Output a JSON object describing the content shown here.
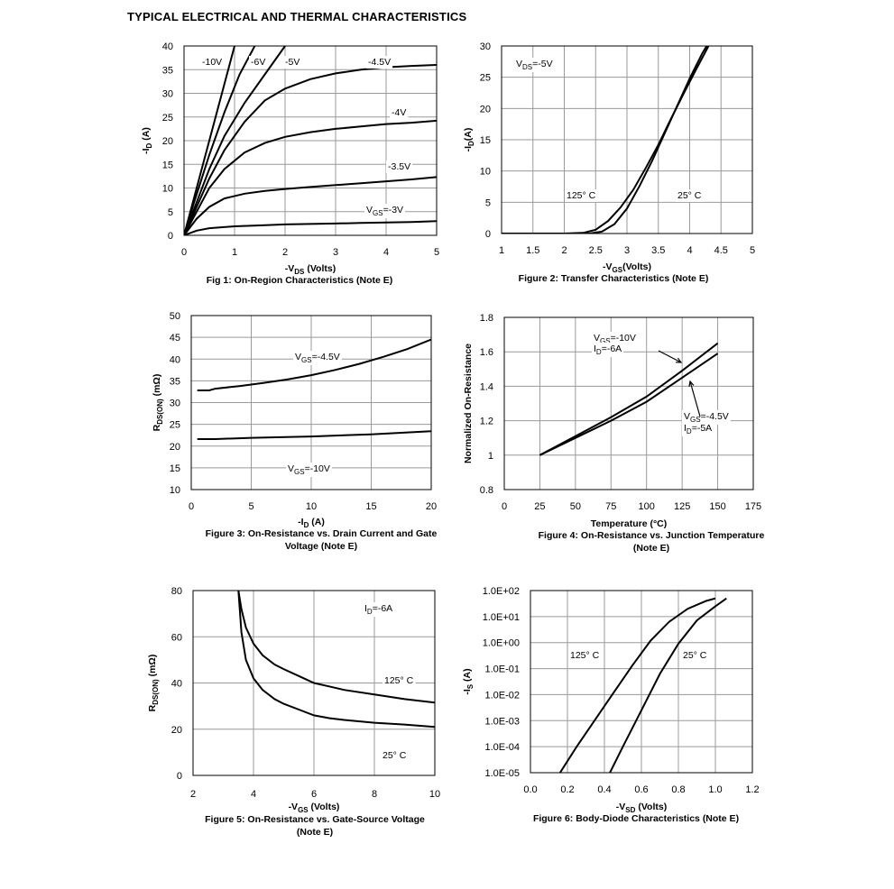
{
  "page": {
    "title": "TYPICAL ELECTRICAL AND THERMAL CHARACTERISTICS"
  },
  "chart_data": [
    {
      "id": "fig1",
      "type": "line",
      "caption": "Fig 1: On-Region Characteristics (Note E)",
      "xlabel": "-V",
      "xlabel_sub": "DS",
      "xlabel_suffix": " (Volts)",
      "ylabel": "-I",
      "ylabel_sub": "D",
      "ylabel_suffix": " (A)",
      "xlim": [
        0,
        5
      ],
      "ylim": [
        0,
        40
      ],
      "xticks": [
        0,
        1,
        2,
        3,
        4,
        5
      ],
      "yticks": [
        0,
        5,
        10,
        15,
        20,
        25,
        30,
        35,
        40
      ],
      "xtick_labels": [
        "0",
        "1",
        "2",
        "3",
        "4",
        "5"
      ],
      "ytick_labels": [
        "0",
        "5",
        "10",
        "15",
        "20",
        "25",
        "30",
        "35",
        "40"
      ],
      "series": [
        {
          "name": "-10V",
          "x": [
            0,
            0.2,
            0.5,
            0.8,
            1.0
          ],
          "y": [
            0,
            8,
            20,
            32,
            40
          ]
        },
        {
          "name": "-6V",
          "x": [
            0,
            0.2,
            0.5,
            0.8,
            1.1,
            1.4
          ],
          "y": [
            0,
            7,
            17,
            26,
            34,
            40
          ]
        },
        {
          "name": "-5V",
          "x": [
            0,
            0.25,
            0.5,
            0.8,
            1.2,
            1.6,
            2.0
          ],
          "y": [
            0,
            7,
            14,
            21,
            28,
            34,
            40
          ]
        },
        {
          "name": "-4.5V",
          "x": [
            0,
            0.25,
            0.5,
            0.8,
            1.2,
            1.6,
            2.0,
            2.5,
            3.0,
            3.5,
            4.0,
            4.5,
            5.0
          ],
          "y": [
            0,
            6,
            12,
            18,
            24,
            28.5,
            31,
            33,
            34.2,
            35,
            35.5,
            35.8,
            36
          ]
        },
        {
          "name": "-4V",
          "x": [
            0,
            0.25,
            0.5,
            0.8,
            1.2,
            1.6,
            2.0,
            2.5,
            3.0,
            3.5,
            4.0,
            4.5,
            5.0
          ],
          "y": [
            0,
            5,
            10,
            14,
            17.5,
            19.5,
            20.8,
            21.8,
            22.5,
            23,
            23.5,
            23.8,
            24.2
          ]
        },
        {
          "name": "-3.5V",
          "x": [
            0,
            0.25,
            0.5,
            0.8,
            1.2,
            1.6,
            2.0,
            2.5,
            3.0,
            3.5,
            4.0,
            4.5,
            5.0
          ],
          "y": [
            0,
            3.5,
            6,
            7.8,
            8.8,
            9.4,
            9.8,
            10.2,
            10.6,
            11,
            11.4,
            11.8,
            12.3
          ]
        },
        {
          "name": "V_GS=-3V",
          "x": [
            0,
            0.25,
            0.5,
            1.0,
            1.5,
            2.0,
            2.5,
            3.0,
            3.5,
            4.0,
            4.5,
            5.0
          ],
          "y": [
            0,
            1,
            1.5,
            1.9,
            2.1,
            2.3,
            2.4,
            2.5,
            2.6,
            2.7,
            2.8,
            3.0
          ]
        }
      ],
      "annotations": [
        "-10V",
        "-6V",
        "-5V",
        "-4.5V",
        "-4V",
        "-3.5V",
        "=-3V"
      ]
    },
    {
      "id": "fig2",
      "type": "line",
      "caption": "Figure 2: Transfer Characteristics (Note E)",
      "xlabel": "-V",
      "xlabel_sub": "GS",
      "xlabel_suffix": "(Volts)",
      "ylabel": "-I",
      "ylabel_sub": "D",
      "ylabel_suffix": "(A)",
      "xlim": [
        1,
        5
      ],
      "ylim": [
        0,
        30
      ],
      "xticks": [
        1,
        1.5,
        2,
        2.5,
        3,
        3.5,
        4,
        4.5,
        5
      ],
      "yticks": [
        0,
        5,
        10,
        15,
        20,
        25,
        30
      ],
      "xtick_labels": [
        "1",
        "1.5",
        "2",
        "2.5",
        "3",
        "3.5",
        "4",
        "4.5",
        "5"
      ],
      "ytick_labels": [
        "0",
        "5",
        "10",
        "15",
        "20",
        "25",
        "30"
      ],
      "series": [
        {
          "name": "125° C",
          "x": [
            1.0,
            2.0,
            2.3,
            2.5,
            2.7,
            2.9,
            3.1,
            3.3,
            3.5,
            3.7,
            3.9,
            4.1,
            4.3
          ],
          "y": [
            0,
            0,
            0.1,
            0.6,
            2.0,
            4.2,
            7.0,
            10.5,
            14.2,
            18.3,
            22.3,
            26.2,
            30
          ]
        },
        {
          "name": "25° C",
          "x": [
            1.0,
            2.4,
            2.6,
            2.8,
            3.0,
            3.2,
            3.4,
            3.6,
            3.8,
            4.0,
            4.2,
            4.3
          ],
          "y": [
            0,
            0,
            0.3,
            1.5,
            4.0,
            7.6,
            11.6,
            16.0,
            20.4,
            24.8,
            28.8,
            30.5
          ]
        }
      ],
      "annotations": [
        "V",
        "DS",
        "=-5V",
        "125° C",
        "25° C"
      ]
    },
    {
      "id": "fig3",
      "type": "line",
      "caption": [
        "Figure 3: On-Resistance vs. Drain Current and Gate",
        "Voltage (Note E)"
      ],
      "xlabel": "-I",
      "xlabel_sub": "D",
      "xlabel_suffix": " (A)",
      "ylabel": "R",
      "ylabel_sub": "DS(ON)",
      "ylabel_suffix": " (mΩ)",
      "xlim": [
        0,
        20
      ],
      "ylim": [
        10,
        50
      ],
      "xticks": [
        0,
        5,
        10,
        15,
        20
      ],
      "yticks": [
        10,
        15,
        20,
        25,
        30,
        35,
        40,
        45,
        50
      ],
      "xtick_labels": [
        "0",
        "5",
        "10",
        "15",
        "20"
      ],
      "ytick_labels": [
        "10",
        "15",
        "20",
        "25",
        "30",
        "35",
        "40",
        "45",
        "50"
      ],
      "series": [
        {
          "name": "V_GS=-4.5V",
          "x": [
            0.5,
            1.5,
            2,
            4,
            6,
            8,
            10,
            12,
            14,
            16,
            18,
            20
          ],
          "y": [
            32.8,
            32.8,
            33.2,
            33.8,
            34.5,
            35.3,
            36.3,
            37.5,
            38.9,
            40.5,
            42.3,
            44.5
          ]
        },
        {
          "name": "V_GS=-10V",
          "x": [
            0.5,
            2,
            5,
            10,
            15,
            20
          ],
          "y": [
            21.6,
            21.6,
            21.9,
            22.2,
            22.7,
            23.4
          ]
        }
      ],
      "annotations": [
        "V",
        "GS",
        "=-4.5V",
        "V",
        "GS",
        "=-10V"
      ]
    },
    {
      "id": "fig4",
      "type": "line",
      "caption": [
        "Figure 4: On-Resistance vs. Junction Temperature",
        "(Note E)"
      ],
      "xlabel": "Temperature (°C)",
      "ylabel": "Normalized On-Resistance",
      "xlim": [
        0,
        175
      ],
      "ylim": [
        0.8,
        1.8
      ],
      "xticks": [
        0,
        25,
        50,
        75,
        100,
        125,
        150,
        175
      ],
      "yticks": [
        0.8,
        1,
        1.2,
        1.4,
        1.6,
        1.8
      ],
      "xtick_labels": [
        "0",
        "25",
        "50",
        "75",
        "100",
        "125",
        "150",
        "175"
      ],
      "ytick_labels": [
        "0.8",
        "1",
        "1.2",
        "1.4",
        "1.6",
        "1.8"
      ],
      "series": [
        {
          "name": "V_GS=-10V, I_D=-6A",
          "x": [
            25,
            50,
            75,
            100,
            125,
            150
          ],
          "y": [
            1.0,
            1.11,
            1.22,
            1.34,
            1.49,
            1.65
          ]
        },
        {
          "name": "V_GS=-4.5V, I_D=-5A",
          "x": [
            25,
            50,
            75,
            100,
            125,
            150
          ],
          "y": [
            1.0,
            1.1,
            1.2,
            1.31,
            1.45,
            1.59
          ]
        }
      ],
      "annotations": [
        "V",
        "GS",
        "=-10V",
        "I",
        "D",
        "=-6A",
        "V",
        "GS",
        "=-4.5V",
        "I",
        "D",
        "=-5A"
      ]
    },
    {
      "id": "fig5",
      "type": "line",
      "caption": [
        "Figure 5: On-Resistance vs. Gate-Source Voltage",
        "(Note E)"
      ],
      "xlabel": "-V",
      "xlabel_sub": "GS",
      "xlabel_suffix": " (Volts)",
      "ylabel": "R",
      "ylabel_sub": "DS(ON)",
      "ylabel_suffix": " (mΩ)",
      "xlim": [
        2,
        10
      ],
      "ylim": [
        0,
        80
      ],
      "xticks": [
        2,
        4,
        6,
        8,
        10
      ],
      "yticks": [
        0,
        20,
        40,
        60,
        80
      ],
      "xtick_labels": [
        "2",
        "4",
        "6",
        "8",
        "10"
      ],
      "ytick_labels": [
        "0",
        "20",
        "40",
        "60",
        "80"
      ],
      "series": [
        {
          "name": "125° C",
          "x": [
            3.5,
            3.6,
            3.75,
            4.0,
            4.3,
            4.7,
            5.0,
            5.5,
            6.0,
            6.5,
            7.0,
            8.0,
            9.0,
            10.0
          ],
          "y": [
            80,
            72,
            64,
            57,
            52,
            48,
            46,
            43,
            40,
            38.5,
            37,
            35,
            33,
            31.5
          ]
        },
        {
          "name": "25° C",
          "x": [
            3.5,
            3.6,
            3.75,
            4.0,
            4.3,
            4.7,
            5.0,
            5.5,
            6.0,
            6.5,
            7.0,
            8.0,
            9.0,
            10.0
          ],
          "y": [
            80,
            62,
            50,
            42,
            37,
            33,
            31,
            28.5,
            26,
            24.8,
            24,
            22.8,
            22,
            21
          ]
        }
      ],
      "annotations": [
        "I",
        "D",
        "=-6A",
        "125° C",
        "25° C"
      ]
    },
    {
      "id": "fig6",
      "type": "line",
      "log_y": true,
      "caption": "Figure 6: Body-Diode Characteristics (Note E)",
      "xlabel": "-V",
      "xlabel_sub": "SD",
      "xlabel_suffix": " (Volts)",
      "ylabel": "-I",
      "ylabel_sub": "S",
      "ylabel_suffix": " (A)",
      "xlim": [
        0,
        1.2
      ],
      "ylim": [
        1e-05,
        100
      ],
      "xticks": [
        0,
        0.2,
        0.4,
        0.6,
        0.8,
        1.0,
        1.2
      ],
      "yticks": [
        1e-05,
        0.0001,
        0.001,
        0.01,
        0.1,
        1,
        10,
        100
      ],
      "xtick_labels": [
        "0.0",
        "0.2",
        "0.4",
        "0.6",
        "0.8",
        "1.0",
        "1.2"
      ],
      "ytick_labels": [
        "1.0E-05",
        "1.0E-04",
        "1.0E-03",
        "1.0E-02",
        "1.0E-01",
        "1.0E+00",
        "1.0E+01",
        "1.0E+02"
      ],
      "series": [
        {
          "name": "125° C",
          "x": [
            0.16,
            0.25,
            0.35,
            0.45,
            0.55,
            0.65,
            0.75,
            0.85,
            0.95,
            1.0
          ],
          "y": [
            1e-05,
            0.0001,
            0.0011,
            0.012,
            0.13,
            1.2,
            6.3,
            20,
            40,
            50
          ]
        },
        {
          "name": "25° C",
          "x": [
            0.43,
            0.5,
            0.6,
            0.7,
            0.8,
            0.9,
            1.0,
            1.06
          ],
          "y": [
            1e-05,
            0.0001,
            0.0025,
            0.063,
            0.9,
            7.1,
            25,
            50
          ]
        }
      ],
      "annotations": [
        "125° C",
        "25° C"
      ]
    }
  ]
}
